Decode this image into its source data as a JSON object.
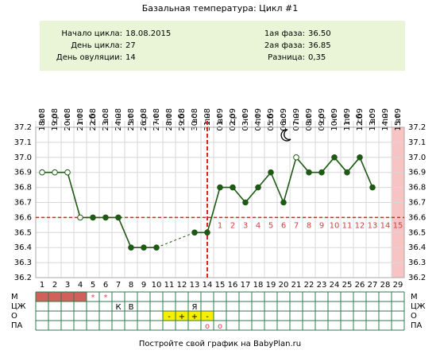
{
  "chart_data": {
    "type": "line",
    "title": "Базальная температура: Цикл #1",
    "info_left": [
      {
        "label": "Начало цикла:",
        "value": "18.08.2015"
      },
      {
        "label": "День цикла:",
        "value": "27"
      },
      {
        "label": "День овуляции:",
        "value": "14"
      }
    ],
    "info_right": [
      {
        "label": "1ая фаза:",
        "value": "36.50"
      },
      {
        "label": "2ая фаза:",
        "value": "36.85"
      },
      {
        "label": "Разница:",
        "value": "0,35"
      }
    ],
    "categories": [
      1,
      2,
      3,
      4,
      5,
      6,
      7,
      8,
      9,
      10,
      11,
      12,
      13,
      14,
      15,
      16,
      17,
      18,
      19,
      20,
      21,
      22,
      23,
      24,
      25,
      26,
      27,
      28,
      29
    ],
    "dates": [
      "18.08",
      "19.08",
      "20.08",
      "21.08",
      "22.08",
      "23.08",
      "24.08",
      "25.08",
      "26.08",
      "27.08",
      "28.08",
      "29.08",
      "30.08",
      "31.08",
      "01.09",
      "02.09",
      "03.09",
      "04.09",
      "05.09",
      "06.09",
      "07.09",
      "08.09",
      "09.09",
      "10.09",
      "11.09",
      "12.09",
      "13.09",
      "14.09",
      "15.09"
    ],
    "weekdays": [
      "вт",
      "ср",
      "чт",
      "пт",
      "сб",
      "вс",
      "пн",
      "вт",
      "ср",
      "чт",
      "пт",
      "сб",
      "вс",
      "пн",
      "вт",
      "ср",
      "чт",
      "пт",
      "сб",
      "вс",
      "пн",
      "вт",
      "ср",
      "чт",
      "пт",
      "сб",
      "вс",
      "пн",
      "вт"
    ],
    "series": [
      {
        "name": "BBT",
        "color": "#1e5a14",
        "values": [
          36.9,
          36.9,
          36.9,
          36.6,
          36.6,
          36.6,
          36.6,
          36.4,
          36.4,
          36.4,
          null,
          null,
          36.5,
          36.5,
          36.8,
          36.8,
          36.7,
          36.8,
          36.9,
          36.7,
          37.0,
          36.9,
          36.9,
          37.0,
          36.9,
          37.0,
          36.8,
          null,
          null
        ],
        "hollow": [
          true,
          true,
          true,
          true,
          false,
          false,
          false,
          false,
          false,
          false,
          false,
          false,
          false,
          false,
          false,
          false,
          false,
          false,
          false,
          false,
          true,
          false,
          false,
          false,
          false,
          false,
          false,
          false,
          false
        ]
      }
    ],
    "luteal_labels": [
      null,
      null,
      null,
      null,
      null,
      null,
      null,
      null,
      null,
      null,
      null,
      null,
      null,
      null,
      1,
      2,
      3,
      4,
      5,
      6,
      7,
      8,
      9,
      10,
      11,
      12,
      13,
      14,
      15
    ],
    "cover_line": 36.6,
    "ovulation_day": 14,
    "highlight_day": 29,
    "ylim": [
      36.2,
      37.2
    ],
    "yticks": [
      36.2,
      36.3,
      36.4,
      36.5,
      36.6,
      36.7,
      36.8,
      36.9,
      {
        "value": 37.0,
        "label": "37.0"
      },
      37.1,
      37.2
    ],
    "grid": true,
    "rows": [
      {
        "name": "М",
        "cells": [
          null,
          null,
          null,
          null,
          "*",
          "*",
          null,
          null,
          null,
          null,
          null,
          null,
          null,
          null,
          null,
          null,
          null,
          null,
          null,
          null,
          null,
          null,
          null,
          null,
          null,
          null,
          null,
          null,
          null
        ],
        "fills": [
          "#d0605c",
          "#d0605c",
          "#d0605c",
          "#d0605c",
          null,
          null,
          null,
          null,
          null,
          null,
          null,
          null,
          null,
          null,
          null,
          null,
          null,
          null,
          null,
          null,
          null,
          null,
          null,
          null,
          null,
          null,
          null,
          null,
          null
        ]
      },
      {
        "name": "ЦЖ",
        "cells": [
          null,
          null,
          null,
          null,
          null,
          null,
          "К",
          "В",
          null,
          null,
          null,
          null,
          "Я",
          null,
          null,
          null,
          null,
          null,
          null,
          null,
          null,
          null,
          null,
          null,
          null,
          null,
          null,
          null,
          null
        ],
        "fills": [
          null,
          null,
          null,
          null,
          null,
          null,
          null,
          null,
          null,
          null,
          null,
          null,
          null,
          null,
          null,
          null,
          null,
          null,
          null,
          null,
          null,
          null,
          null,
          null,
          null,
          null,
          null,
          null,
          null
        ]
      },
      {
        "name": "О",
        "cells": [
          null,
          null,
          null,
          null,
          null,
          null,
          null,
          null,
          null,
          null,
          "-",
          "+",
          "+",
          "-",
          null,
          null,
          null,
          null,
          null,
          null,
          null,
          null,
          null,
          null,
          null,
          null,
          null,
          null,
          null
        ],
        "fills": [
          null,
          null,
          null,
          null,
          null,
          null,
          null,
          null,
          null,
          null,
          "#f5f000",
          "#f5f000",
          "#f5f000",
          "#f5f000",
          null,
          null,
          null,
          null,
          null,
          null,
          null,
          null,
          null,
          null,
          null,
          null,
          null,
          null,
          null
        ]
      },
      {
        "name": "ПА",
        "cells": [
          null,
          null,
          null,
          null,
          null,
          null,
          null,
          null,
          null,
          null,
          null,
          null,
          null,
          "о",
          "о",
          null,
          null,
          null,
          null,
          null,
          null,
          null,
          null,
          null,
          null,
          null,
          null,
          null,
          null
        ],
        "fills": [
          null,
          null,
          null,
          null,
          null,
          null,
          null,
          null,
          null,
          null,
          null,
          null,
          null,
          null,
          null,
          null,
          null,
          null,
          null,
          null,
          null,
          null,
          null,
          null,
          null,
          null,
          null,
          null,
          null
        ]
      }
    ],
    "footer": "Постройте свой график на BabyPlan.ru"
  }
}
